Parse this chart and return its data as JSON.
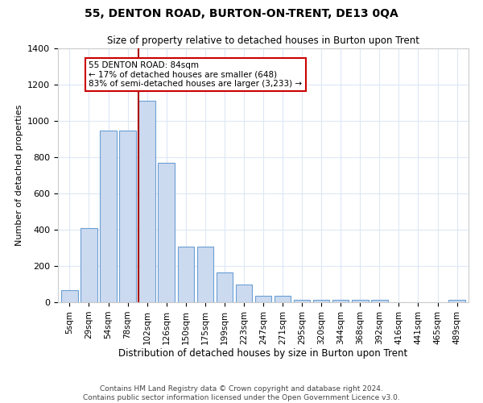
{
  "title": "55, DENTON ROAD, BURTON-ON-TRENT, DE13 0QA",
  "subtitle": "Size of property relative to detached houses in Burton upon Trent",
  "xlabel": "Distribution of detached houses by size in Burton upon Trent",
  "ylabel": "Number of detached properties",
  "bar_labels": [
    "5sqm",
    "29sqm",
    "54sqm",
    "78sqm",
    "102sqm",
    "126sqm",
    "150sqm",
    "175sqm",
    "199sqm",
    "223sqm",
    "247sqm",
    "271sqm",
    "295sqm",
    "320sqm",
    "344sqm",
    "368sqm",
    "392sqm",
    "416sqm",
    "441sqm",
    "465sqm",
    "489sqm"
  ],
  "bar_values": [
    65,
    410,
    945,
    945,
    1110,
    770,
    305,
    305,
    165,
    100,
    35,
    35,
    15,
    15,
    15,
    15,
    15,
    0,
    0,
    0,
    15
  ],
  "bar_color": "#ccdaf0",
  "bar_edge_color": "#6b9fd4",
  "annotation_box_text": "55 DENTON ROAD: 84sqm\n← 17% of detached houses are smaller (648)\n83% of semi-detached houses are larger (3,233) →",
  "annotation_box_color": "#ffffff",
  "annotation_box_edge_color": "#cc0000",
  "vline_color": "#aa0000",
  "vline_x_index": 3.55,
  "ylim": [
    0,
    1400
  ],
  "yticks": [
    0,
    200,
    400,
    600,
    800,
    1000,
    1200,
    1400
  ],
  "footer_line1": "Contains HM Land Registry data © Crown copyright and database right 2024.",
  "footer_line2": "Contains public sector information licensed under the Open Government Licence v3.0.",
  "background_color": "#ffffff",
  "grid_color": "#dde8f5"
}
